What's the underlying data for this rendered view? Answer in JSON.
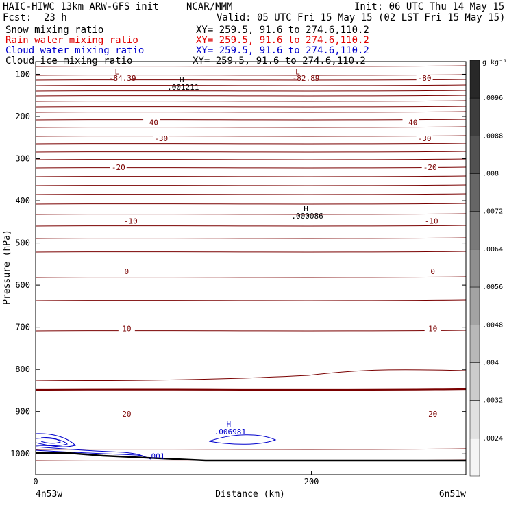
{
  "header": {
    "title": "HAIC-HIWC 13km ARW-GFS init",
    "org": "NCAR/MMM",
    "init": "Init: 06 UTC Thu 14 May 15",
    "fcst_label": "Fcst:",
    "fcst_value": "23 h",
    "valid": "Valid: 05 UTC Fri 15 May 15 (02 LST Fri 15 May 15)",
    "fields": [
      {
        "name": "Snow mixing ratio",
        "xy": "XY= 259.5, 91.6 to 274.6,110.2",
        "color": "#000000"
      },
      {
        "name": "Rain water mixing ratio",
        "xy": "XY= 259.5, 91.6 to 274.6,110.2",
        "color": "#e00000"
      },
      {
        "name": "Cloud water mixing ratio",
        "xy": "XY= 259.5, 91.6 to 274.6,110.2",
        "color": "#0000cc"
      },
      {
        "name": "Cloud ice mixing ratio",
        "xy": "XY= 259.5, 91.6 to 274.6,110.2",
        "color": "#000000"
      }
    ]
  },
  "chart_data": {
    "type": "contour",
    "xlabel": "Distance (km)",
    "ylabel": "Pressure (hPa)",
    "xlim": [
      0,
      312
    ],
    "ylim": [
      1050,
      70
    ],
    "x_ticks": [
      0,
      200
    ],
    "y_ticks": [
      100,
      200,
      300,
      400,
      500,
      600,
      700,
      800,
      900,
      1000
    ],
    "left_endpoint": "4n53w",
    "right_endpoint": "6n51w",
    "colorbar": {
      "unit": "g kg⁻¹",
      "levels": [
        ".0096",
        ".0088",
        ".008",
        ".0072",
        ".0064",
        ".0056",
        ".0048",
        ".004",
        ".0032",
        ".0024"
      ]
    },
    "temperature_labels": [
      {
        "text": "-84.39",
        "x": 63,
        "p": 114
      },
      {
        "text": "-82.89",
        "x": 196,
        "p": 114
      },
      {
        "text": "-80",
        "x": 282,
        "p": 114
      },
      {
        "text": "-40",
        "x": 84,
        "p": 219
      },
      {
        "text": "-40",
        "x": 272,
        "p": 219
      },
      {
        "text": "-30",
        "x": 91,
        "p": 257
      },
      {
        "text": "-30",
        "x": 282,
        "p": 257
      },
      {
        "text": "-20",
        "x": 60,
        "p": 325
      },
      {
        "text": "-20",
        "x": 286,
        "p": 325
      },
      {
        "text": "-10",
        "x": 69,
        "p": 453
      },
      {
        "text": "-10",
        "x": 287,
        "p": 453
      },
      {
        "text": "0",
        "x": 66,
        "p": 572
      },
      {
        "text": "0",
        "x": 288,
        "p": 572
      },
      {
        "text": "10",
        "x": 66,
        "p": 708
      },
      {
        "text": "10",
        "x": 288,
        "p": 708
      },
      {
        "text": "20",
        "x": 66,
        "p": 910
      },
      {
        "text": "20",
        "x": 288,
        "p": 910
      }
    ],
    "extrema": [
      {
        "sym": "L",
        "x": 59,
        "p": 100
      },
      {
        "sym": "L",
        "x": 190,
        "p": 100
      },
      {
        "sym": "H",
        "x": 106,
        "p": 119,
        "value": ".001211"
      },
      {
        "sym": "H",
        "x": 196,
        "p": 424,
        "value": ".000086"
      },
      {
        "sym": "H",
        "x": 140,
        "p": 936,
        "value": ".006981"
      }
    ],
    "cloud_water_label": {
      "text": ".001",
      "x": 87,
      "p": 1005
    }
  }
}
